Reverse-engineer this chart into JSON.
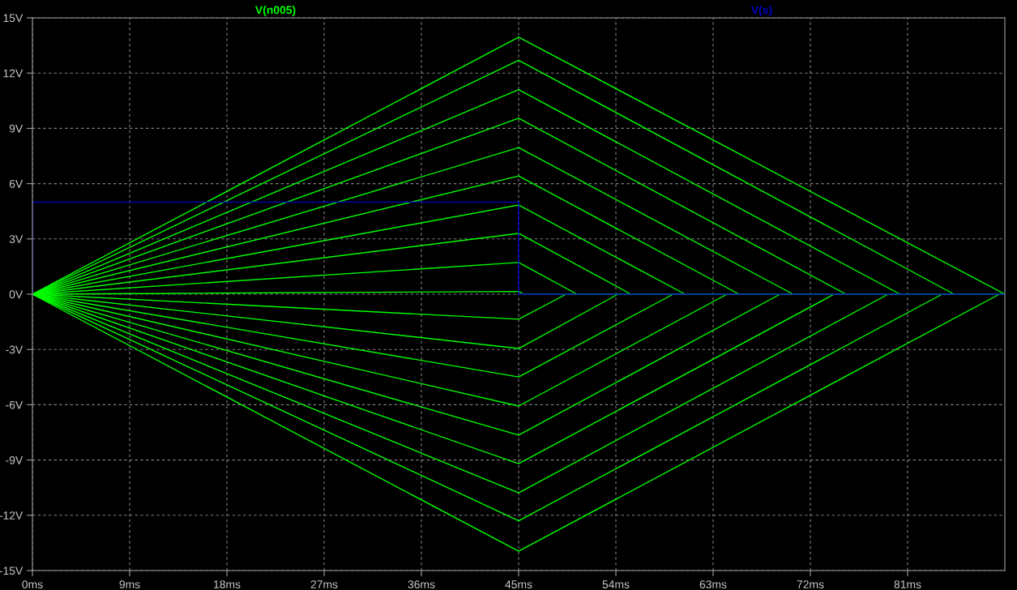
{
  "chart_data": {
    "type": "line",
    "xlim": [
      0,
      90
    ],
    "ylim": [
      -15,
      15
    ],
    "xticks": [
      {
        "value": 0,
        "label": "0ms"
      },
      {
        "value": 9,
        "label": "9ms"
      },
      {
        "value": 18,
        "label": "18ms"
      },
      {
        "value": 27,
        "label": "27ms"
      },
      {
        "value": 36,
        "label": "36ms"
      },
      {
        "value": 45,
        "label": "45ms"
      },
      {
        "value": 54,
        "label": "54ms"
      },
      {
        "value": 63,
        "label": "63ms"
      },
      {
        "value": 72,
        "label": "72ms"
      },
      {
        "value": 81,
        "label": "81ms"
      }
    ],
    "yticks": [
      {
        "value": -15,
        "label": "-15V"
      },
      {
        "value": -12,
        "label": "-12V"
      },
      {
        "value": -9,
        "label": "-9V"
      },
      {
        "value": -6,
        "label": "-6V"
      },
      {
        "value": -3,
        "label": "-3V"
      },
      {
        "value": 0,
        "label": "0V"
      },
      {
        "value": 3,
        "label": "3V"
      },
      {
        "value": 6,
        "label": "6V"
      },
      {
        "value": 9,
        "label": "9V"
      },
      {
        "value": 12,
        "label": "12V"
      },
      {
        "value": 15,
        "label": "15V"
      }
    ],
    "grid": true,
    "legend": "top",
    "line_style": "solid",
    "marker": "none",
    "series": [
      {
        "name": "V(n005)",
        "color": "#00ff00",
        "x": [
          0,
          45,
          90
        ],
        "values": [
          0,
          13.95,
          0
        ]
      },
      {
        "color": "#00ff00",
        "x": [
          0,
          45,
          85.3,
          90
        ],
        "values": [
          0,
          12.7,
          0,
          0
        ]
      },
      {
        "color": "#00ff00",
        "x": [
          0,
          45,
          80.3,
          90
        ],
        "values": [
          0,
          11.1,
          0,
          0
        ]
      },
      {
        "color": "#00ff00",
        "x": [
          0,
          45,
          75.3,
          90
        ],
        "values": [
          0,
          9.55,
          0,
          0
        ]
      },
      {
        "color": "#00ff00",
        "x": [
          0,
          45,
          70.4,
          90
        ],
        "values": [
          0,
          7.96,
          0,
          0
        ]
      },
      {
        "color": "#00ff00",
        "x": [
          0,
          45,
          65.4,
          90
        ],
        "values": [
          0,
          6.42,
          0,
          0
        ]
      },
      {
        "color": "#00ff00",
        "x": [
          0,
          45,
          60.4,
          90
        ],
        "values": [
          0,
          4.84,
          0,
          0
        ]
      },
      {
        "color": "#00ff00",
        "x": [
          0,
          45,
          55.4,
          90
        ],
        "values": [
          0,
          3.3,
          0,
          0
        ]
      },
      {
        "color": "#00ff00",
        "x": [
          0,
          45,
          50.4,
          90
        ],
        "values": [
          0,
          1.72,
          0,
          0
        ]
      },
      {
        "color": "#00ff00",
        "x": [
          0,
          45,
          45.5,
          90
        ],
        "values": [
          0,
          0.15,
          0,
          0
        ]
      },
      {
        "color": "#00ff00",
        "x": [
          0,
          45,
          49.4,
          90
        ],
        "values": [
          0,
          -1.36,
          0,
          0
        ]
      },
      {
        "color": "#00ff00",
        "x": [
          0,
          45,
          54.2,
          90
        ],
        "values": [
          0,
          -2.95,
          0,
          0
        ]
      },
      {
        "color": "#00ff00",
        "x": [
          0,
          45,
          59.3,
          90
        ],
        "values": [
          0,
          -4.49,
          0,
          0
        ]
      },
      {
        "color": "#00ff00",
        "x": [
          0,
          45,
          64.3,
          90
        ],
        "values": [
          0,
          -6.07,
          0,
          0
        ]
      },
      {
        "color": "#00ff00",
        "x": [
          0,
          45,
          69.2,
          90
        ],
        "values": [
          0,
          -7.65,
          0,
          0
        ]
      },
      {
        "color": "#00ff00",
        "x": [
          0,
          45,
          74.2,
          90
        ],
        "values": [
          0,
          -9.2,
          0,
          0
        ]
      },
      {
        "color": "#00ff00",
        "x": [
          0,
          45,
          79.2,
          90
        ],
        "values": [
          0,
          -10.78,
          0,
          0
        ]
      },
      {
        "color": "#00ff00",
        "x": [
          0,
          45,
          84.2,
          90
        ],
        "values": [
          0,
          -12.3,
          0,
          0
        ]
      },
      {
        "color": "#00ff00",
        "x": [
          0,
          45,
          89.5,
          90
        ],
        "values": [
          0,
          -13.95,
          0,
          0
        ]
      },
      {
        "name": "V(s)",
        "color": "#0000c8",
        "x": [
          0,
          0,
          45,
          45,
          90
        ],
        "values": [
          0,
          5,
          5,
          0,
          0
        ]
      }
    ]
  }
}
